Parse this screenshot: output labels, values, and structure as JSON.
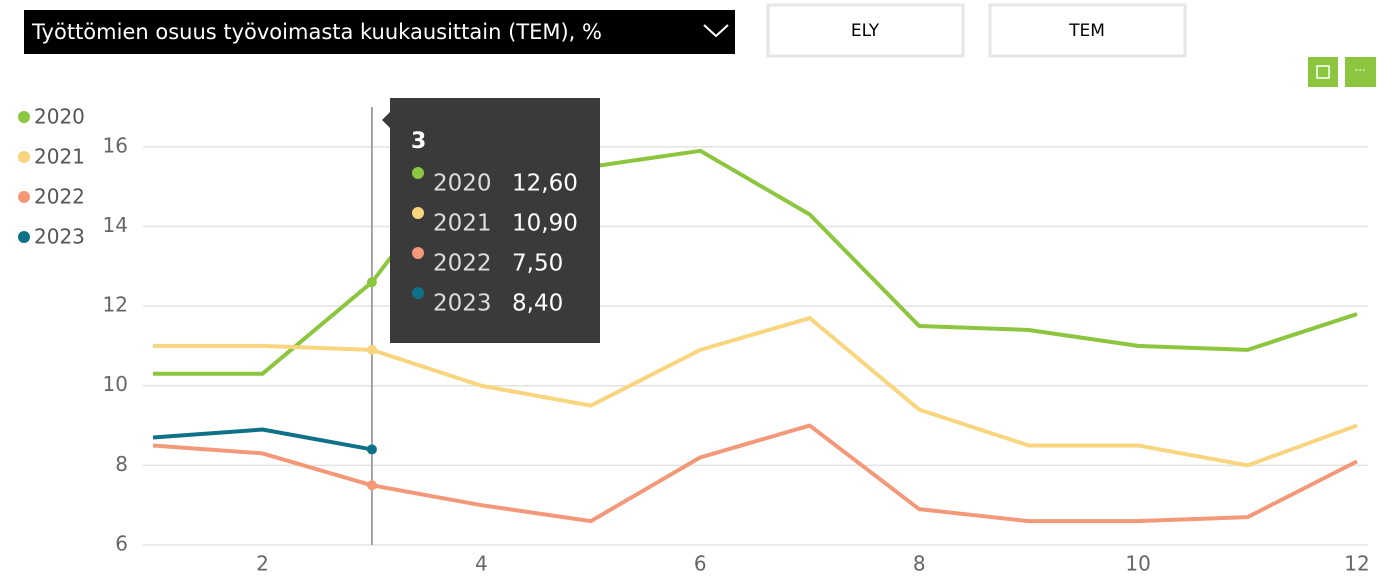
{
  "dropdown": {
    "label": "Työttömien osuus työvoimasta kuukausittain (TEM), %"
  },
  "buttons": [
    "ELY",
    "TEM"
  ],
  "chart_data": {
    "type": "line",
    "x": [
      1,
      2,
      3,
      4,
      5,
      6,
      7,
      8,
      9,
      10,
      11,
      12
    ],
    "xlim": [
      1,
      12
    ],
    "xticks": [
      2,
      4,
      6,
      8,
      10,
      12
    ],
    "ylim": [
      6,
      17
    ],
    "yticks": [
      6,
      8,
      10,
      12,
      14,
      16
    ],
    "grid": true,
    "legend": "left",
    "series": [
      {
        "name": "2020",
        "color": "#8cc63f",
        "values": [
          10.3,
          10.3,
          12.6,
          16.2,
          15.5,
          15.9,
          14.3,
          11.5,
          11.4,
          11.0,
          10.9,
          11.8
        ]
      },
      {
        "name": "2021",
        "color": "#f8d57e",
        "values": [
          11.0,
          11.0,
          10.9,
          10.0,
          9.5,
          10.9,
          11.7,
          9.4,
          8.5,
          8.5,
          8.0,
          9.0
        ]
      },
      {
        "name": "2022",
        "color": "#f4987a",
        "values": [
          8.5,
          8.3,
          7.5,
          7.0,
          6.6,
          8.2,
          9.0,
          6.9,
          6.6,
          6.6,
          6.7,
          8.1
        ]
      },
      {
        "name": "2023",
        "color": "#0e7187",
        "values": [
          8.7,
          8.9,
          8.4,
          null,
          null,
          null,
          null,
          null,
          null,
          null,
          null,
          null
        ]
      }
    ]
  },
  "tooltip": {
    "values": [
      "12,60",
      "10,90",
      "7,50",
      "8,40"
    ]
  }
}
